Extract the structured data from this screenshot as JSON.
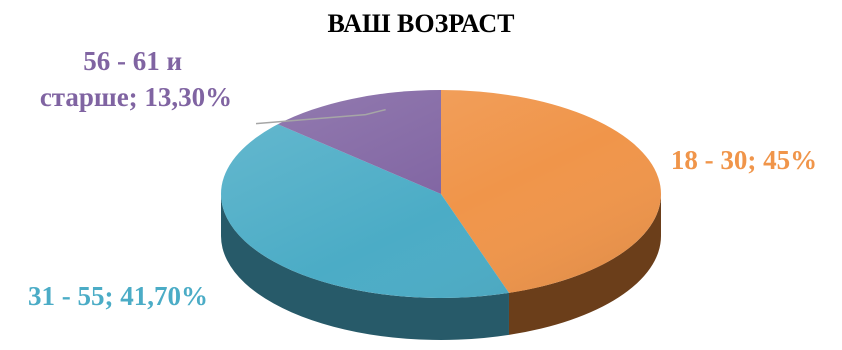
{
  "chart_data": {
    "type": "pie",
    "style": "3d",
    "title": "ВАШ ВОЗРАСТ",
    "categories": [
      "18 - 30",
      "31 - 55",
      "56 - 61 и старше"
    ],
    "values": [
      45,
      41.7,
      13.3
    ],
    "data_labels": [
      "18 - 30; 45%",
      "31 - 55; 41,70%",
      "56 - 61 и старше; 13,30%"
    ],
    "label_lines": [
      [
        "56 - 61 и",
        "старше; 13,30%"
      ]
    ],
    "legend": "none",
    "colors": [
      "#f0954a",
      "#4bacc6",
      "#8064a2"
    ],
    "side_colors": [
      "#6b3e1a",
      "#275a69",
      "#4a3863"
    ]
  }
}
